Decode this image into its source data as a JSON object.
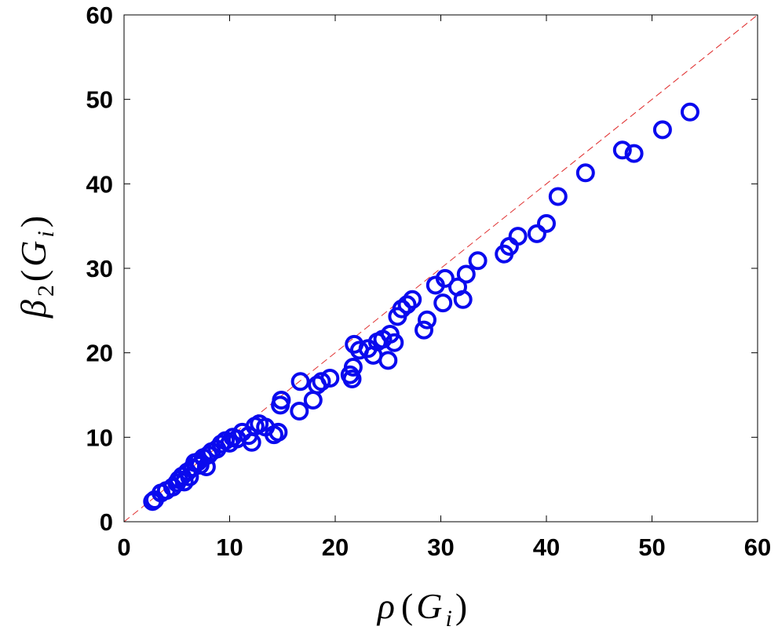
{
  "chart_data": {
    "type": "scatter",
    "xlabel": {
      "main": "ρ",
      "open": "(",
      "var": "G",
      "sub": "i",
      "close": ")"
    },
    "ylabel": {
      "main": "β",
      "main_sub": "2",
      "open": "(",
      "var": "G",
      "sub": "i",
      "close": ")"
    },
    "xlim": [
      0,
      60
    ],
    "ylim": [
      0,
      60
    ],
    "xticks": [
      "0",
      "10",
      "20",
      "30",
      "40",
      "50",
      "60"
    ],
    "yticks": [
      "0",
      "10",
      "20",
      "30",
      "40",
      "50",
      "60"
    ],
    "grid": false,
    "legend": "none",
    "marker_color": "#0a0aee",
    "reference_line": {
      "from": [
        0,
        0
      ],
      "to": [
        60,
        60
      ],
      "color": "#e03030",
      "style": "dashed"
    },
    "series": [
      {
        "x": [
          2.7,
          2.9,
          3.5,
          4.0,
          4.6,
          5.0,
          5.2,
          5.5,
          5.7,
          6.0,
          6.2,
          6.5,
          6.7,
          7.0,
          7.2,
          7.5,
          7.8,
          8.0,
          8.3,
          8.8,
          9.2,
          9.6,
          10.0,
          10.3,
          10.7,
          11.2,
          11.8,
          12.1,
          12.4,
          12.8,
          13.4,
          14.2,
          14.6,
          14.8,
          14.9,
          16.6,
          16.7,
          17.9,
          18.3,
          18.7,
          19.5,
          21.4,
          21.6,
          21.7,
          21.8,
          22.3,
          23.1,
          23.6,
          24.0,
          24.5,
          25.0,
          25.2,
          25.6,
          25.9,
          26.3,
          26.8,
          27.3,
          28.4,
          28.7,
          29.5,
          30.2,
          30.4,
          31.6,
          32.1,
          32.4,
          33.5,
          36.0,
          36.5,
          37.3,
          39.1,
          40.0,
          41.1,
          43.7,
          47.2,
          48.3,
          51.0,
          53.6
        ],
        "y": [
          2.4,
          2.6,
          3.4,
          3.7,
          4.1,
          4.6,
          5.0,
          5.4,
          4.7,
          5.9,
          5.3,
          6.4,
          7.0,
          7.1,
          6.7,
          7.6,
          6.5,
          7.9,
          8.3,
          8.6,
          9.2,
          9.6,
          9.3,
          10.0,
          9.8,
          10.6,
          10.2,
          9.4,
          11.3,
          11.6,
          11.2,
          10.3,
          10.6,
          13.8,
          14.4,
          13.1,
          16.6,
          14.4,
          16.2,
          16.6,
          17.0,
          17.4,
          16.9,
          18.3,
          21.0,
          20.3,
          20.5,
          19.7,
          21.3,
          21.6,
          19.1,
          22.2,
          21.2,
          24.3,
          25.2,
          25.7,
          26.3,
          22.7,
          23.9,
          28.0,
          25.9,
          28.8,
          27.8,
          26.3,
          29.3,
          30.9,
          31.7,
          32.6,
          33.8,
          34.1,
          35.3,
          38.5,
          41.3,
          44.0,
          43.6,
          46.4,
          48.5
        ]
      }
    ]
  }
}
